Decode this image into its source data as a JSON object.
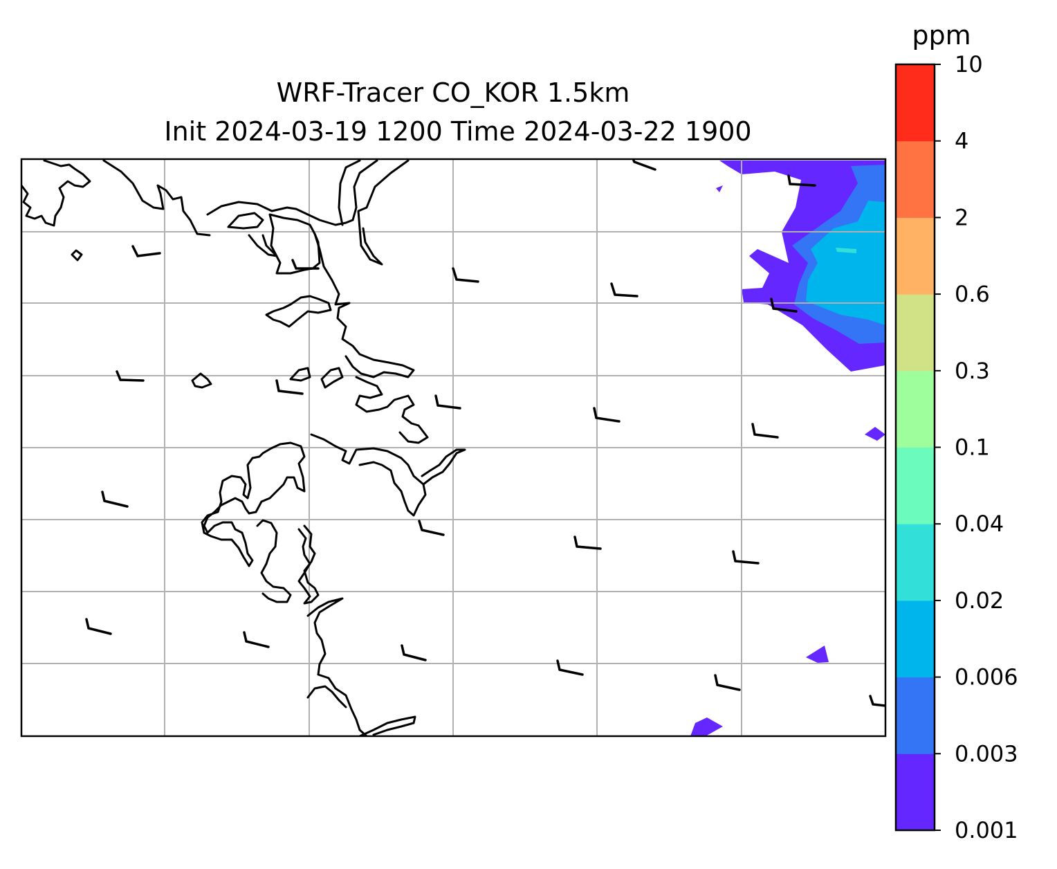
{
  "title": {
    "line1": "WRF-Tracer CO_KOR 1.5km",
    "line2": "Init 2024-03-19 1200 Time 2024-03-22 1900"
  },
  "colorbar": {
    "unit": "ppm",
    "levels": [
      "0.001",
      "0.003",
      "0.006",
      "0.02",
      "0.04",
      "0.1",
      "0.3",
      "0.6",
      "2",
      "4",
      "10"
    ],
    "colors": [
      "#6527ff",
      "#3375f5",
      "#00b5eb",
      "#33e0d9",
      "#6bfbbd",
      "#9ffe9c",
      "#d0e285",
      "#ffb264",
      "#ff7343",
      "#ff2c1b"
    ]
  },
  "map": {
    "gridlines": true,
    "coastline_color": "#000000",
    "barb_color": "#000000"
  }
}
